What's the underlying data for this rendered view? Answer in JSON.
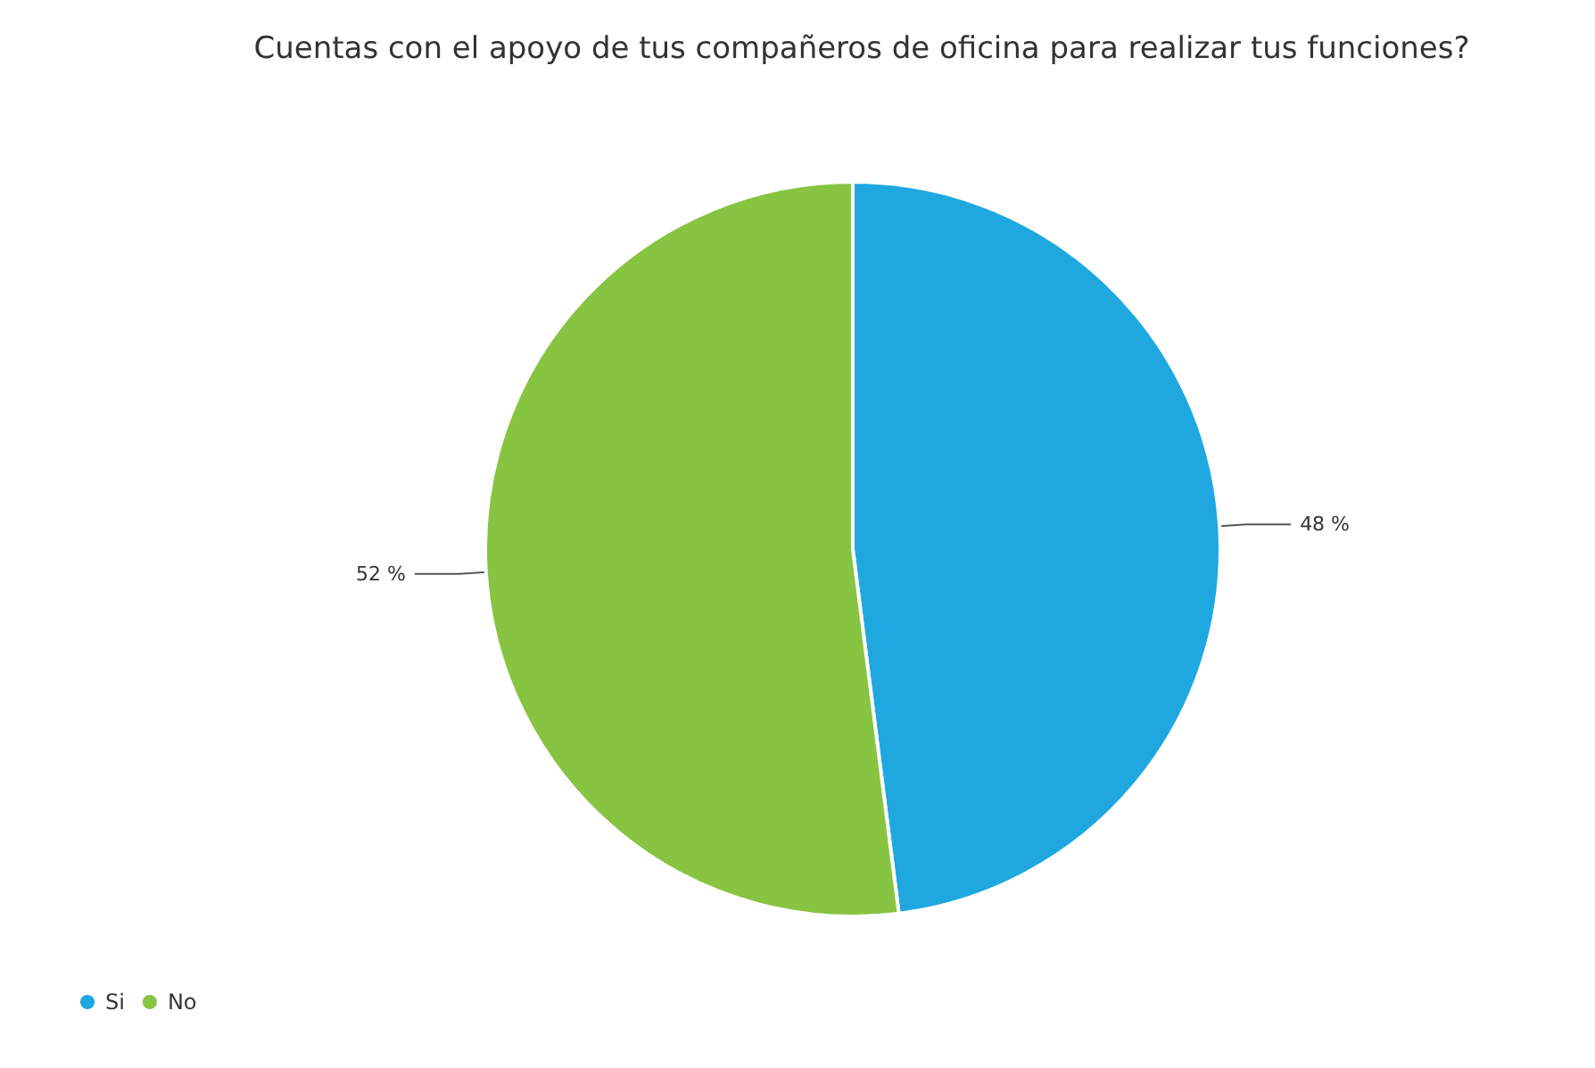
{
  "chart_data": {
    "type": "pie",
    "title": "Cuentas con el apoyo de tus compañeros de oficina para realizar tus funciones?",
    "categories": [
      "Si",
      "No"
    ],
    "values": [
      48,
      52
    ],
    "value_labels": [
      "48 %",
      "52 %"
    ],
    "colors": [
      "#1fa8df",
      "#87c442"
    ],
    "legend": "bottom left"
  }
}
